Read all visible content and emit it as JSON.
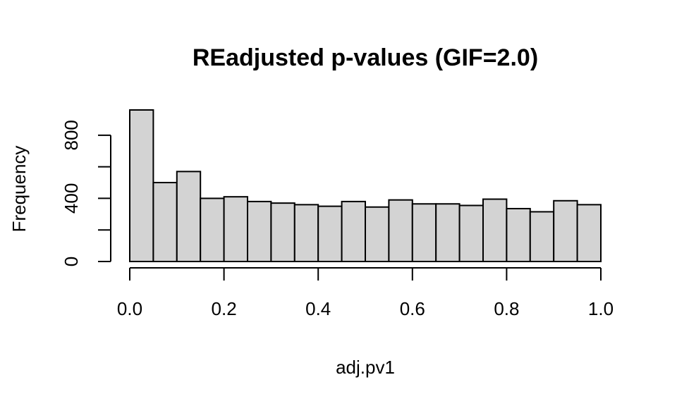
{
  "chart_data": {
    "type": "bar",
    "title": "REadjusted p-values (GIF=2.0)",
    "xlabel": "adj.pv1",
    "ylabel": "Frequency",
    "xlim": [
      0,
      1
    ],
    "ylim": [
      0,
      960
    ],
    "bin_width": 0.05,
    "bins": [
      0.0,
      0.05,
      0.1,
      0.15,
      0.2,
      0.25,
      0.3,
      0.35,
      0.4,
      0.45,
      0.5,
      0.55,
      0.6,
      0.65,
      0.7,
      0.75,
      0.8,
      0.85,
      0.9,
      0.95
    ],
    "values": [
      960,
      500,
      570,
      400,
      410,
      380,
      370,
      360,
      350,
      380,
      345,
      390,
      365,
      365,
      355,
      395,
      335,
      315,
      385,
      360
    ],
    "x_ticks": [
      0.0,
      0.2,
      0.4,
      0.6,
      0.8,
      1.0
    ],
    "x_tick_labels": [
      "0.0",
      "0.2",
      "0.4",
      "0.6",
      "0.8",
      "1.0"
    ],
    "y_ticks": [
      0,
      200,
      400,
      600,
      800
    ],
    "y_tick_labels": [
      "0",
      "",
      "400",
      "",
      "800"
    ],
    "bar_fill": "#d3d3d3",
    "bar_stroke": "#000000",
    "grid": false
  }
}
